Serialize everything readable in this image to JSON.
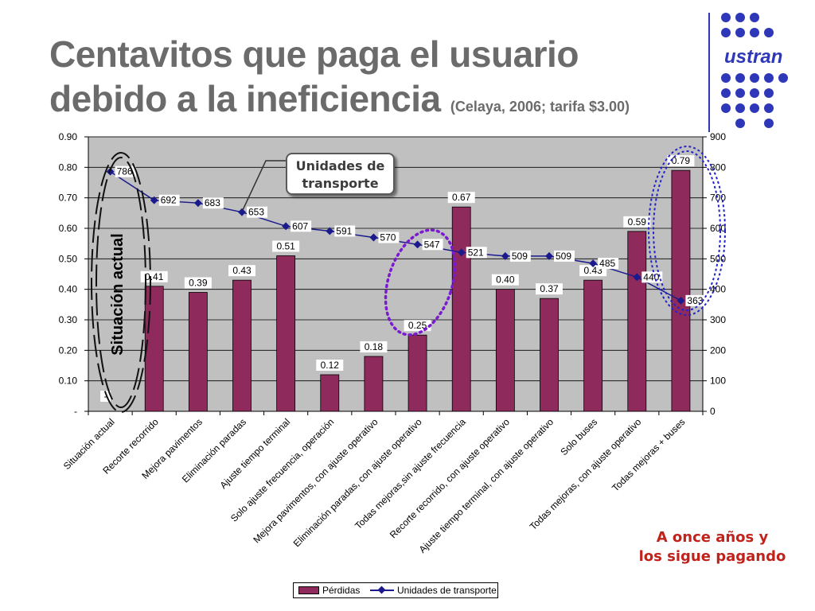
{
  "title": {
    "line1": "Centavitos que paga el usuario",
    "line2": "debido a la ineficiencia",
    "subtitle": "(Celaya, 2006; tarifa $3.00)"
  },
  "logo": {
    "text": "ustran",
    "color": "#2e37b8"
  },
  "callout": {
    "line1": "Unidades de",
    "line2": "transporte"
  },
  "annotation_vertical": "Situación actual",
  "note": {
    "line1": "A once años y",
    "line2": "los sigue pagando",
    "color": "#c0221c"
  },
  "legend": {
    "bars_label": "Pérdidas",
    "line_label": "Unidades de transporte"
  },
  "chart_data": {
    "type": "bar",
    "categories": [
      "Situación actual",
      "Recorte recorrido",
      "Mejora pavimentos",
      "Eliminación paradas",
      "Ajuste tiempo terminal",
      "Solo ajuste frecuencia, operación",
      "Mejora pavimentos, con ajuste operativo",
      "Eliminación paradas, con ajuste operativo",
      "Todas mejoras,sin ajuste frecuencia",
      "Recorte recorrido, con ajuste operativo",
      "Ajuste tiempo terminal, con ajuste operativo",
      "Solo buses",
      "Todas mejoras, con ajuste operativo",
      "Todas mejoras + buses"
    ],
    "series": [
      {
        "name": "Pérdidas",
        "axis": "left",
        "values": [
          0,
          0.41,
          0.39,
          0.43,
          0.51,
          0.12,
          0.18,
          0.25,
          0.67,
          0.4,
          0.37,
          0.43,
          0.59,
          0.79
        ],
        "labels": [
          "-",
          "0.41",
          "0.39",
          "0.43",
          "0.51",
          "0.12",
          "0.18",
          "0.25",
          "0.67",
          "0.40",
          "0.37",
          "0.43",
          "0.59",
          "0.79"
        ],
        "color": "#8e2b5c"
      },
      {
        "name": "Unidades de transporte",
        "axis": "right",
        "values": [
          786,
          692,
          683,
          653,
          607,
          591,
          570,
          547,
          521,
          509,
          509,
          485,
          440,
          363
        ],
        "color": "#1a1a8c"
      }
    ],
    "y_left": {
      "ylim": [
        0,
        0.9
      ],
      "ticks": [
        "-",
        "0.10",
        "0.20",
        "0.30",
        "0.40",
        "0.50",
        "0.60",
        "0.70",
        "0.80",
        "0.90"
      ]
    },
    "y_right": {
      "ylim": [
        0,
        900
      ],
      "ticks": [
        "0",
        "100",
        "200",
        "300",
        "400",
        "500",
        "600",
        "700",
        "800",
        "900"
      ]
    },
    "plot_background": "#c0c0c0",
    "legend_position": "bottom"
  }
}
